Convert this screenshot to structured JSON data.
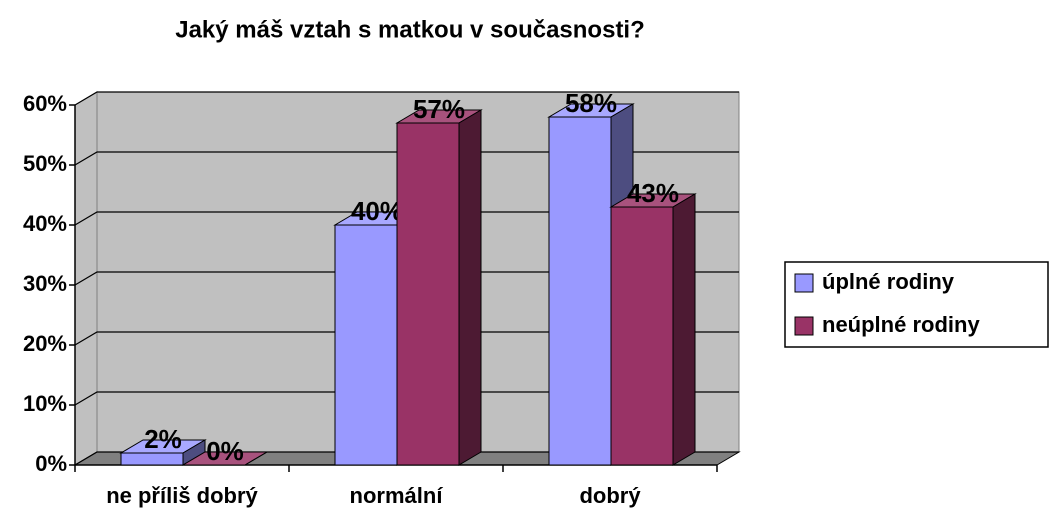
{
  "chart_data": {
    "type": "bar3d",
    "title": "Jaký máš vztah s matkou v současnosti?",
    "categories": [
      "ne příliš dobrý",
      "normální",
      "dobrý"
    ],
    "series": [
      {
        "name": "úplné rodiny",
        "color": "#9999ff",
        "values": [
          2,
          40,
          58
        ],
        "value_labels": [
          "2%",
          "40%",
          "58%"
        ]
      },
      {
        "name": "neúplné rodiny",
        "color": "#993366",
        "values": [
          0,
          57,
          43
        ],
        "value_labels": [
          "0%",
          "57%",
          "43%"
        ]
      }
    ],
    "ylim": [
      0,
      60
    ],
    "yticks": [
      {
        "value": 0,
        "label": "0%"
      },
      {
        "value": 10,
        "label": "10%"
      },
      {
        "value": 20,
        "label": "20%"
      },
      {
        "value": 30,
        "label": "30%"
      },
      {
        "value": 40,
        "label": "40%"
      },
      {
        "value": 50,
        "label": "50%"
      },
      {
        "value": 60,
        "label": "60%"
      }
    ],
    "grid": true,
    "legend": "right"
  }
}
